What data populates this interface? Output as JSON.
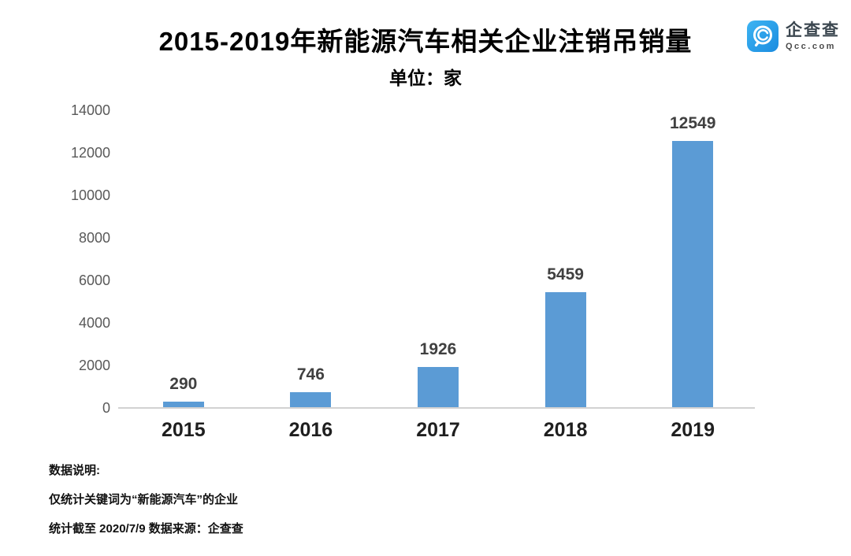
{
  "header": {
    "title": "2015-2019年新能源汽车相关企业注销吊销量",
    "subtitle": "单位：家"
  },
  "logo": {
    "name": "企查查",
    "domain": "Qcc.com",
    "brand_color": "#2196e8"
  },
  "chart_data": {
    "type": "bar",
    "categories": [
      "2015",
      "2016",
      "2017",
      "2018",
      "2019"
    ],
    "values": [
      290,
      746,
      1926,
      5459,
      12549
    ],
    "title": "2015-2019年新能源汽车相关企业注销吊销量",
    "subtitle": "单位：家",
    "xlabel": "",
    "ylabel": "",
    "ylim": [
      0,
      14000
    ],
    "ytick_step": 2000,
    "bar_color": "#5b9bd5",
    "grid": false,
    "legend": "none",
    "data_labels": true
  },
  "footnotes": {
    "heading": "数据说明:",
    "line1": "仅统计关键词为“新能源汽车”的企业",
    "line2": "统计截至 2020/7/9   数据来源：企查查"
  }
}
